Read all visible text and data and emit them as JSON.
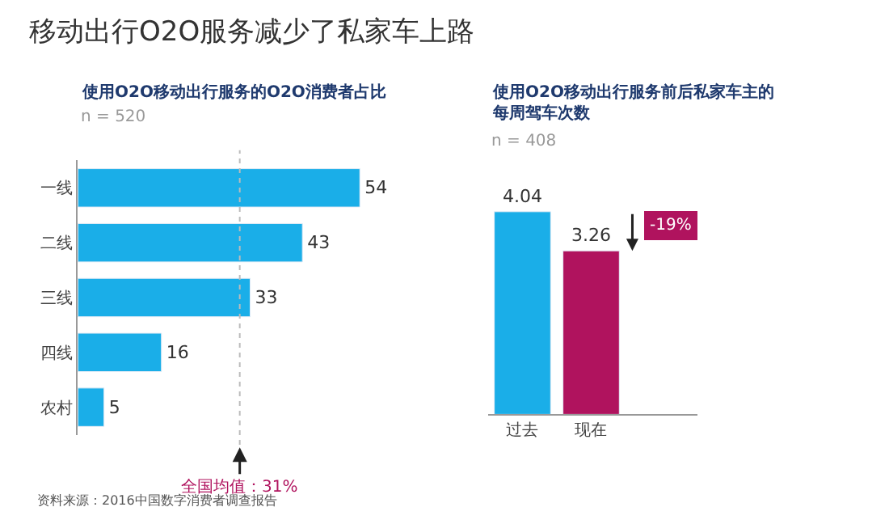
{
  "chart_data": [
    {
      "type": "bar",
      "orientation": "horizontal",
      "title": "移动出行O2O服务减少了私家车上路",
      "subtitle": "使用O2O移动出行服务的O2O消费者占比",
      "categories": [
        "一线",
        "二线",
        "三线",
        "四线",
        "农村"
      ],
      "values": [
        54,
        43,
        33,
        16,
        5
      ],
      "color": "#1aaee8",
      "data_labels": true,
      "ref_lines": [
        {
          "axis": "x",
          "value": 31,
          "label": "全国均值：31%",
          "color": "#bbbbbb",
          "line_style": "dotted"
        }
      ],
      "annotations": [
        "n = 520",
        "资料来源：2016中国数字消费者调查报告"
      ],
      "tick_labels": "y"
    },
    {
      "type": "bar",
      "title": "使用O2O移动出行服务前后私家车主的每周驾车次数",
      "categories": [
        "过去",
        "现在"
      ],
      "values": [
        4.04,
        3.26
      ],
      "colors": [
        "#1aaee8",
        "#b0135e"
      ],
      "data_labels": true,
      "annotations": [
        "n = 408",
        "-19%"
      ],
      "tick_labels": "x"
    }
  ]
}
